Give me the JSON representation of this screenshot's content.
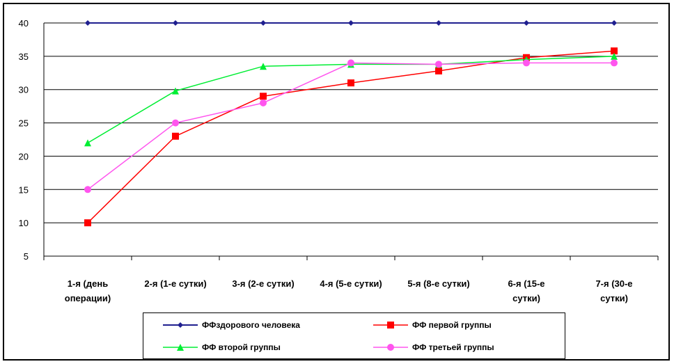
{
  "chart_data": {
    "type": "line",
    "title": "",
    "xlabel": "",
    "ylabel": "",
    "ylim": [
      5,
      40
    ],
    "yticks": [
      "5",
      "10",
      "15",
      "20",
      "25",
      "30",
      "35",
      "40"
    ],
    "grid": true,
    "legend_position": "bottom",
    "categories": [
      [
        "1-я (день",
        "операции)"
      ],
      [
        "2-я (1-е сутки)"
      ],
      [
        "3-я (2-е сутки)"
      ],
      [
        "4-я (5-е сутки)"
      ],
      [
        "5-я (8-е сутки)"
      ],
      [
        "6-я (15-е",
        "сутки)"
      ],
      [
        "7-я (30-е",
        "сутки)"
      ]
    ],
    "series": [
      {
        "name": "ФФздорового человека",
        "color": "#1f1f8f",
        "marker": "diamond",
        "values": [
          40,
          40,
          40,
          40,
          40,
          40,
          40
        ]
      },
      {
        "name": "ФФ первой группы",
        "color": "#ff0000",
        "marker": "square",
        "values": [
          10,
          23,
          29,
          31,
          32.8,
          34.8,
          35.8
        ]
      },
      {
        "name": "ФФ второй группы",
        "color": "#00ee33",
        "marker": "triangle",
        "values": [
          22,
          29.8,
          33.5,
          33.8,
          33.8,
          34.5,
          35
        ]
      },
      {
        "name": "ФФ третьей группы",
        "color": "#ff55ee",
        "marker": "circle",
        "values": [
          15,
          25,
          28,
          34,
          33.8,
          34,
          34
        ]
      }
    ]
  }
}
